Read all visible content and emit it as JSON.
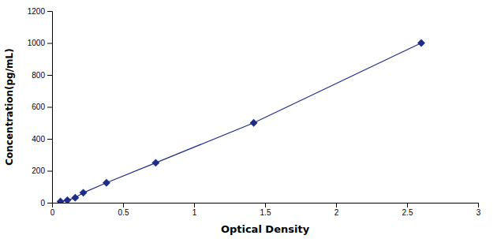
{
  "chart_data": {
    "type": "line",
    "x": [
      0.059,
      0.108,
      0.163,
      0.22,
      0.383,
      0.73,
      1.42,
      2.6
    ],
    "values": [
      7.8,
      15.6,
      31.25,
      62.5,
      125,
      250,
      500,
      1000
    ],
    "color": "#1F2D8A",
    "marker": "diamond",
    "line_style": "solid",
    "xlabel": "Optical Density",
    "ylabel": "Concentration(pg/mL)",
    "xlim": [
      0,
      3
    ],
    "ylim": [
      0,
      1200
    ],
    "xticks": [
      0,
      0.5,
      1,
      1.5,
      2,
      2.5,
      3
    ],
    "yticks": [
      0,
      200,
      400,
      600,
      800,
      1000,
      1200
    ],
    "grid": false
  }
}
